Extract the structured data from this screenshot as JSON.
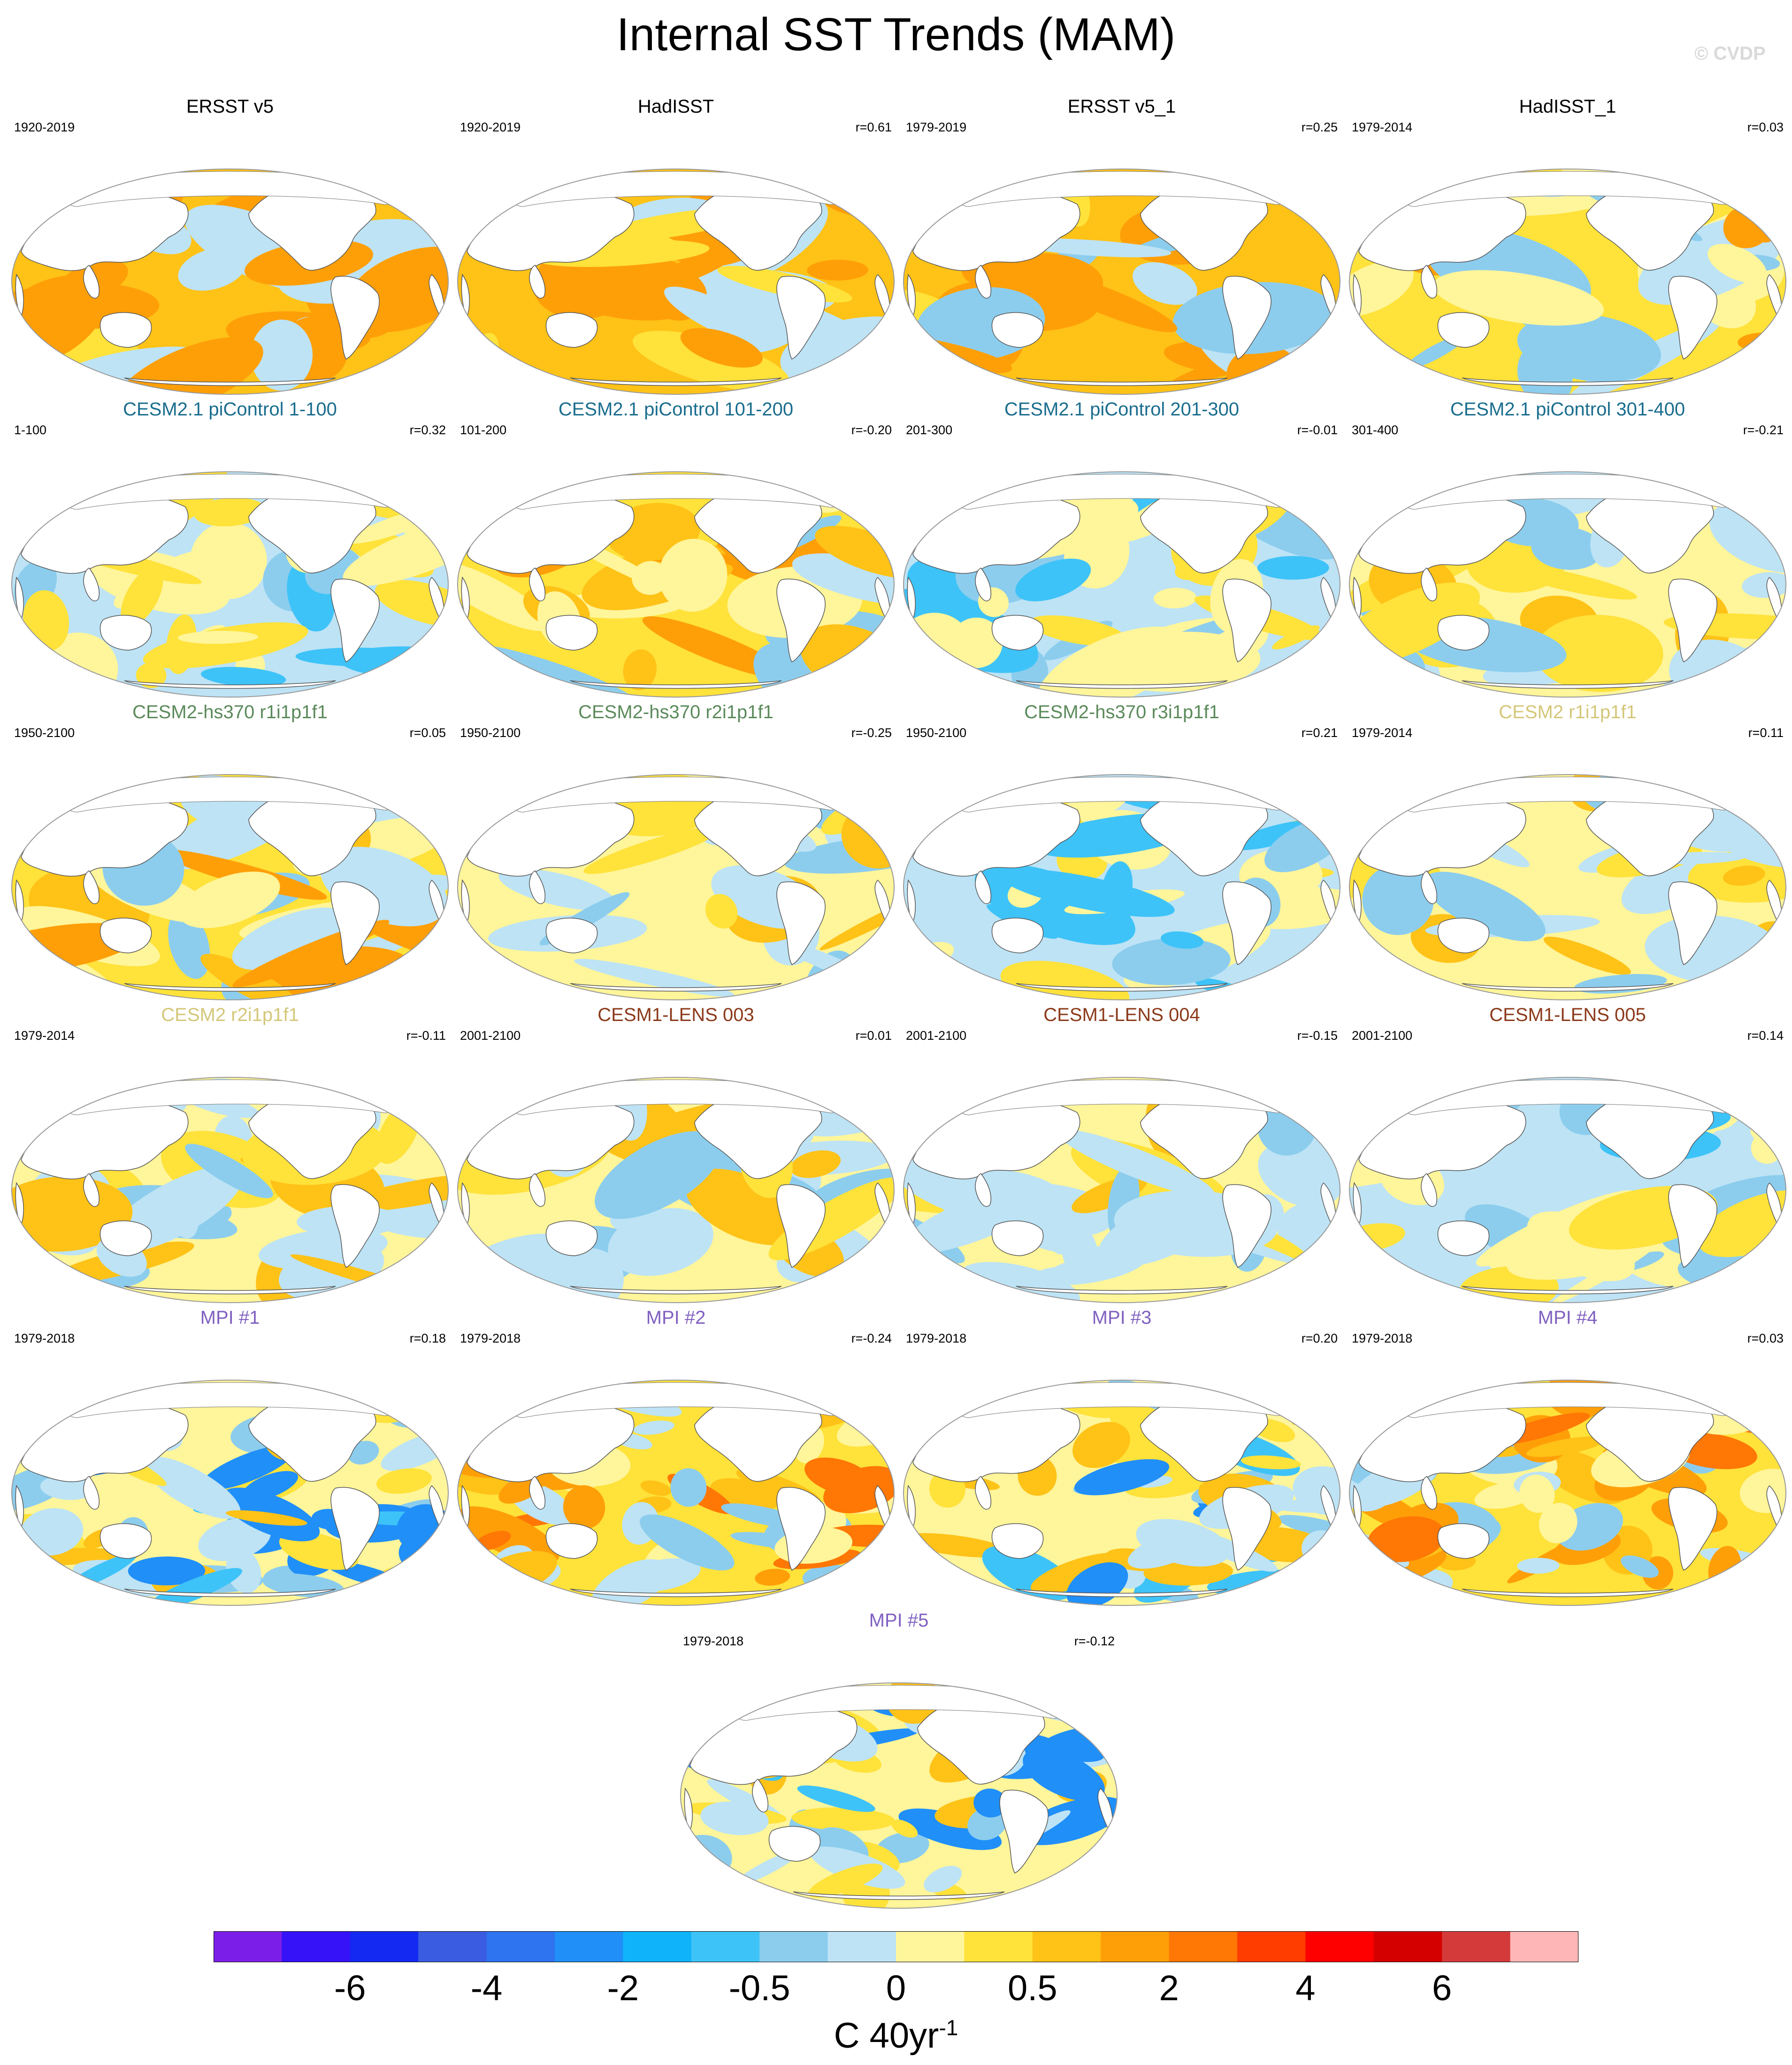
{
  "title": "Internal SST Trends (MAM)",
  "watermark": "© CVDP",
  "chart_data": {
    "type": "heatmap",
    "projection": "robinson-like global map, Pacific-centered",
    "variable": "SST trend",
    "units": {
      "base": "C 40yr",
      "exponent": "-1"
    },
    "colorbar": {
      "colors": [
        "#7b1fe8",
        "#3512f7",
        "#1429f2",
        "#3a5ce0",
        "#2e73ef",
        "#208ff8",
        "#0fb3fa",
        "#3ec3f8",
        "#8ccdee",
        "#bde3f5",
        "#fff59a",
        "#ffe23a",
        "#ffc217",
        "#ff9f08",
        "#ff7705",
        "#ff3d00",
        "#ff0000",
        "#d40000",
        "#d43a3a",
        "#ffb6b6"
      ],
      "tick_labels": [
        "-6",
        "-4",
        "-2",
        "-0.5",
        "0",
        "0.5",
        "2",
        "4",
        "6"
      ]
    },
    "panels": [
      {
        "id": "p1",
        "title": "ERSST v5",
        "title_color": "#000000",
        "period": "1920-2019",
        "corr": "",
        "pattern": "warm-strong"
      },
      {
        "id": "p2",
        "title": "HadISST",
        "title_color": "#000000",
        "period": "1920-2019",
        "corr": "r=0.61",
        "pattern": "warm-strong"
      },
      {
        "id": "p3",
        "title": "ERSST v5_1",
        "title_color": "#000000",
        "period": "1979-2019",
        "corr": "r=0.25",
        "pattern": "warm-southcool"
      },
      {
        "id": "p4",
        "title": "HadISST_1",
        "title_color": "#000000",
        "period": "1979-2014",
        "corr": "r=0.03",
        "pattern": "warm-mixed"
      },
      {
        "id": "p5",
        "title": "CESM2.1 piControl 1-100",
        "title_color": "#1a6d8e",
        "period": "1-100",
        "corr": "r=0.32",
        "pattern": "cool-mixed"
      },
      {
        "id": "p6",
        "title": "CESM2.1 piControl 101-200",
        "title_color": "#1a6d8e",
        "period": "101-200",
        "corr": "r=-0.20",
        "pattern": "warm-mixed"
      },
      {
        "id": "p7",
        "title": "CESM2.1 piControl 201-300",
        "title_color": "#1a6d8e",
        "period": "201-300",
        "corr": "r=-0.01",
        "pattern": "cool-mixed"
      },
      {
        "id": "p8",
        "title": "CESM2.1 piControl 301-400",
        "title_color": "#1a6d8e",
        "period": "301-400",
        "corr": "r=-0.21",
        "pattern": "mixed"
      },
      {
        "id": "p9",
        "title": "CESM2-hs370 r1i1p1f1",
        "title_color": "#5b8a5b",
        "period": "1950-2100",
        "corr": "r=0.05",
        "pattern": "warm-mixed"
      },
      {
        "id": "p10",
        "title": "CESM2-hs370 r2i1p1f1",
        "title_color": "#5b8a5b",
        "period": "1950-2100",
        "corr": "r=-0.25",
        "pattern": "mixed"
      },
      {
        "id": "p11",
        "title": "CESM2-hs370 r3i1p1f1",
        "title_color": "#5b8a5b",
        "period": "1950-2100",
        "corr": "r=0.21",
        "pattern": "cool-mixed"
      },
      {
        "id": "p12",
        "title": "CESM2 r1i1p1f1",
        "title_color": "#d4c77a",
        "period": "1979-2014",
        "corr": "r=0.11",
        "pattern": "mixed"
      },
      {
        "id": "p13",
        "title": "CESM2 r2i1p1f1",
        "title_color": "#d4c77a",
        "period": "1979-2014",
        "corr": "r=-0.11",
        "pattern": "mixed"
      },
      {
        "id": "p14",
        "title": "CESM1-LENS 003",
        "title_color": "#8b3a1a",
        "period": "2001-2100",
        "corr": "r=0.01",
        "pattern": "mixed"
      },
      {
        "id": "p15",
        "title": "CESM1-LENS 004",
        "title_color": "#8b3a1a",
        "period": "2001-2100",
        "corr": "r=-0.15",
        "pattern": "mixed"
      },
      {
        "id": "p16",
        "title": "CESM1-LENS 005",
        "title_color": "#8b3a1a",
        "period": "2001-2100",
        "corr": "r=0.14",
        "pattern": "cool-mixed"
      },
      {
        "id": "p17",
        "title": "MPI #1",
        "title_color": "#8060c0",
        "period": "1979-2018",
        "corr": "r=0.18",
        "pattern": "noisy"
      },
      {
        "id": "p18",
        "title": "MPI #2",
        "title_color": "#8060c0",
        "period": "1979-2018",
        "corr": "r=-0.24",
        "pattern": "noisy-warm"
      },
      {
        "id": "p19",
        "title": "MPI #3",
        "title_color": "#8060c0",
        "period": "1979-2018",
        "corr": "r=0.20",
        "pattern": "noisy"
      },
      {
        "id": "p20",
        "title": "MPI #4",
        "title_color": "#8060c0",
        "period": "1979-2018",
        "corr": "r=0.03",
        "pattern": "noisy-warm"
      },
      {
        "id": "p21",
        "title": "MPI #5",
        "title_color": "#8060c0",
        "period": "1979-2018",
        "corr": "r=-0.12",
        "pattern": "noisy"
      }
    ]
  }
}
